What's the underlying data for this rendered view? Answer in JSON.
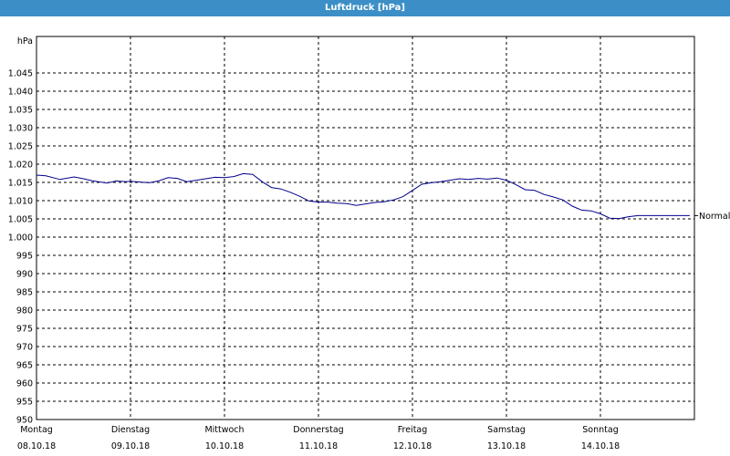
{
  "window": {
    "title": "Luftdruck [hPa]",
    "accent_color": "#3c8fc6"
  },
  "chart_data": {
    "type": "line",
    "title": "Luftdruck [hPa]",
    "ylabel": "hPa",
    "xlabel": "",
    "ylim": [
      950,
      1050
    ],
    "xlim": [
      0,
      7
    ],
    "grid": true,
    "yticks": [
      {
        "value": 1045,
        "label": "1.045"
      },
      {
        "value": 1040,
        "label": "1.040"
      },
      {
        "value": 1035,
        "label": "1.035"
      },
      {
        "value": 1030,
        "label": "1.030"
      },
      {
        "value": 1025,
        "label": "1.025"
      },
      {
        "value": 1020,
        "label": "1.020"
      },
      {
        "value": 1015,
        "label": "1.015"
      },
      {
        "value": 1010,
        "label": "1.010"
      },
      {
        "value": 1005,
        "label": "1.005"
      },
      {
        "value": 1000,
        "label": "1.000"
      },
      {
        "value": 995,
        "label": "995"
      },
      {
        "value": 990,
        "label": "990"
      },
      {
        "value": 985,
        "label": "985"
      },
      {
        "value": 980,
        "label": "980"
      },
      {
        "value": 975,
        "label": "975"
      },
      {
        "value": 970,
        "label": "970"
      },
      {
        "value": 965,
        "label": "965"
      },
      {
        "value": 960,
        "label": "960"
      },
      {
        "value": 955,
        "label": "955"
      },
      {
        "value": 950,
        "label": "950"
      }
    ],
    "xticks": [
      {
        "value": 0,
        "day": "Montag",
        "date": "08.10.18"
      },
      {
        "value": 1,
        "day": "Dienstag",
        "date": "09.10.18"
      },
      {
        "value": 2,
        "day": "Mittwoch",
        "date": "10.10.18"
      },
      {
        "value": 3,
        "day": "Donnerstag",
        "date": "11.10.18"
      },
      {
        "value": 4,
        "day": "Freitag",
        "date": "12.10.18"
      },
      {
        "value": 5,
        "day": "Samstag",
        "date": "13.10.18"
      },
      {
        "value": 6,
        "day": "Sonntag",
        "date": "14.10.18"
      }
    ],
    "series": [
      {
        "color": "#00008b",
        "end_label": "Normal",
        "x": [
          0,
          0.1,
          0.25,
          0.4,
          0.5,
          0.6,
          0.75,
          0.85,
          0.95,
          1.0,
          1.1,
          1.2,
          1.3,
          1.4,
          1.5,
          1.6,
          1.7,
          1.8,
          1.9,
          2.0,
          2.1,
          2.2,
          2.3,
          2.4,
          2.5,
          2.6,
          2.7,
          2.8,
          2.9,
          3.0,
          3.1,
          3.2,
          3.3,
          3.4,
          3.5,
          3.6,
          3.7,
          3.8,
          3.9,
          4.0,
          4.1,
          4.2,
          4.3,
          4.4,
          4.5,
          4.6,
          4.7,
          4.8,
          4.9,
          5.0,
          5.1,
          5.2,
          5.3,
          5.4,
          5.5,
          5.6,
          5.7,
          5.8,
          5.9,
          6.0,
          6.1,
          6.2,
          6.3,
          6.4,
          6.5,
          6.6,
          6.7,
          6.8,
          6.9,
          6.95
        ],
        "values": [
          1017,
          1016.8,
          1015.8,
          1016.5,
          1016,
          1015.4,
          1014.8,
          1015.4,
          1015.2,
          1015.3,
          1015.1,
          1014.9,
          1015.4,
          1016.3,
          1016.1,
          1015.2,
          1015.6,
          1016,
          1016.4,
          1016.3,
          1016.6,
          1017.4,
          1017.2,
          1015.2,
          1013.6,
          1013.2,
          1012.3,
          1011.2,
          1009.9,
          1009.6,
          1009.6,
          1009.3,
          1009.2,
          1008.7,
          1009.1,
          1009.5,
          1009.7,
          1010.2,
          1011.1,
          1012.8,
          1014.5,
          1014.9,
          1015.2,
          1015.6,
          1016.0,
          1015.8,
          1016.1,
          1015.9,
          1016.2,
          1015.6,
          1014.4,
          1013.0,
          1012.8,
          1011.7,
          1011.0,
          1010.2,
          1008.5,
          1007.4,
          1007.2,
          1006.4,
          1005.2,
          1005.1,
          1005.6,
          1005.9,
          1005.9,
          1005.9,
          1005.9,
          1005.9,
          1005.9,
          1005.9
        ]
      }
    ]
  }
}
